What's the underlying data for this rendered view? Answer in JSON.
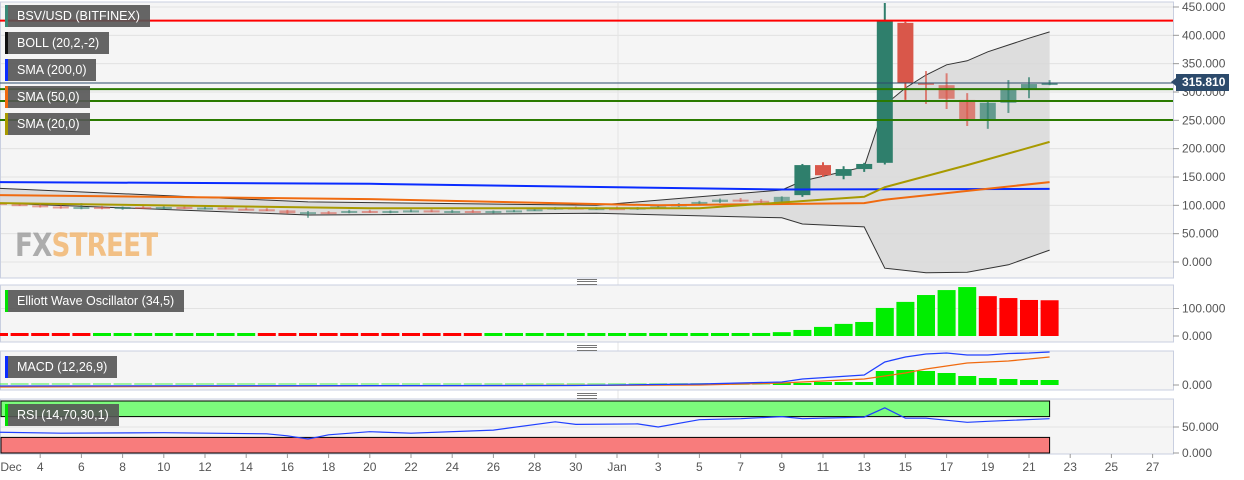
{
  "legends": {
    "pair": {
      "label": "BSV/USD (BITFINEX)",
      "color": "#3a8a78"
    },
    "boll": {
      "label": "BOLL (20,2,-2)",
      "color": "#111111"
    },
    "sma200": {
      "label": "SMA (200,0)",
      "color": "#0a2cff"
    },
    "sma50": {
      "label": "SMA (50,0)",
      "color": "#f06a0f"
    },
    "sma20": {
      "label": "SMA (20,0)",
      "color": "#a89a00"
    },
    "ewo": {
      "label": "Elliott Wave Oscillator (34,5)",
      "color": "#00e000"
    },
    "macd": {
      "label": "MACD (12,26,9)",
      "color": "#0a2cff"
    },
    "rsi": {
      "label": "RSI (14,70,30,1)",
      "color": "#00e000"
    }
  },
  "watermark": {
    "fx": "FX",
    "street": "STREET"
  },
  "current_price": "315.810",
  "colors": {
    "up": "#2f7f6c",
    "down": "#d9574a",
    "ewo_up": "#00ee00",
    "ewo_down": "#ff0000",
    "band": "#d8d8d8",
    "level_red": "#ff0000",
    "level_green": "#2a7a00",
    "price_line": "#2c4a6b",
    "rsi_over": "#7cfb7c",
    "rsi_under": "#f87c7c"
  },
  "chart_data": [
    {
      "type": "candlestick",
      "title": "BSV/USD (BITFINEX)",
      "ylim": [
        -30,
        460
      ],
      "y_ticks": [
        "450.000",
        "400.000",
        "350.000",
        "300.000",
        "250.000",
        "200.000",
        "150.000",
        "100.000",
        "50.000",
        "0.000"
      ],
      "x_tick_labels": [
        "Dec",
        "4",
        "6",
        "8",
        "10",
        "12",
        "14",
        "16",
        "18",
        "20",
        "22",
        "24",
        "26",
        "28",
        "30",
        "Jan",
        "3",
        "5",
        "7",
        "9",
        "11",
        "13",
        "15",
        "17",
        "19",
        "21",
        "23",
        "25",
        "27"
      ],
      "start_date": "2018-12-02",
      "ohlc": [
        [
          104,
          106,
          100,
          102
        ],
        [
          102,
          104,
          99,
          100
        ],
        [
          100,
          102,
          96,
          98
        ],
        [
          98,
          100,
          94,
          96
        ],
        [
          96,
          104,
          93,
          97
        ],
        [
          97,
          99,
          93,
          95
        ],
        [
          95,
          98,
          92,
          97
        ],
        [
          97,
          99,
          94,
          96
        ],
        [
          96,
          99,
          93,
          97
        ],
        [
          97,
          98,
          94,
          95
        ],
        [
          95,
          98,
          93,
          96
        ],
        [
          96,
          98,
          93,
          94
        ],
        [
          94,
          96,
          92,
          93
        ],
        [
          93,
          95,
          90,
          91
        ],
        [
          91,
          92,
          85,
          86
        ],
        [
          86,
          90,
          78,
          88
        ],
        [
          88,
          90,
          85,
          87
        ],
        [
          87,
          92,
          86,
          90
        ],
        [
          90,
          92,
          87,
          88
        ],
        [
          88,
          91,
          86,
          90
        ],
        [
          90,
          93,
          88,
          91
        ],
        [
          91,
          93,
          88,
          89
        ],
        [
          89,
          92,
          87,
          90
        ],
        [
          90,
          92,
          87,
          88
        ],
        [
          88,
          91,
          86,
          90
        ],
        [
          90,
          92,
          88,
          91
        ],
        [
          91,
          94,
          90,
          93
        ],
        [
          93,
          97,
          92,
          96
        ],
        [
          96,
          98,
          93,
          94
        ],
        [
          94,
          97,
          92,
          95
        ],
        [
          95,
          98,
          93,
          94
        ],
        [
          94,
          97,
          92,
          96
        ],
        [
          96,
          99,
          94,
          98
        ],
        [
          98,
          104,
          97,
          102
        ],
        [
          102,
          108,
          101,
          106
        ],
        [
          106,
          112,
          104,
          110
        ],
        [
          110,
          113,
          106,
          108
        ],
        [
          108,
          111,
          103,
          106
        ],
        [
          106,
          116,
          104,
          115
        ],
        [
          118,
          173,
          115,
          171
        ],
        [
          171,
          176,
          150,
          153
        ],
        [
          152,
          169,
          146,
          164
        ],
        [
          164,
          175,
          159,
          173
        ],
        [
          175,
          457,
          172,
          425
        ],
        [
          422,
          424,
          286,
          316
        ],
        [
          316,
          337,
          279,
          314
        ],
        [
          312,
          333,
          270,
          288
        ],
        [
          286,
          298,
          240,
          252
        ],
        [
          252,
          284,
          235,
          281
        ],
        [
          281,
          321,
          263,
          304
        ],
        [
          304,
          326,
          289,
          314
        ],
        [
          314,
          321,
          312,
          315.81
        ]
      ],
      "levels": [
        {
          "value": 426,
          "color": "#ff0000"
        },
        {
          "value": 305,
          "color": "#2a7a00"
        },
        {
          "value": 284,
          "color": "#2a7a00"
        },
        {
          "value": 250.5,
          "color": "#2a7a00"
        },
        {
          "value": 315.81,
          "color": "#2c4a6b"
        }
      ],
      "boll_upper": [
        [
          "2018-12-02",
          130
        ],
        [
          "2018-12-17",
          106
        ],
        [
          "2018-12-31",
          100
        ],
        [
          "2019-01-09",
          127
        ],
        [
          "2019-01-10",
          143
        ],
        [
          "2019-01-13",
          168
        ],
        [
          "2019-01-14",
          277
        ],
        [
          "2019-01-15",
          307
        ],
        [
          "2019-01-16",
          330
        ],
        [
          "2019-01-17",
          348
        ],
        [
          "2019-01-18",
          355
        ],
        [
          "2019-01-19",
          371
        ],
        [
          "2019-01-20",
          383
        ],
        [
          "2019-01-21",
          395
        ],
        [
          "2019-01-22",
          406
        ]
      ],
      "boll_lower": [
        [
          "2018-12-02",
          104
        ],
        [
          "2018-12-17",
          83
        ],
        [
          "2018-12-31",
          86
        ],
        [
          "2019-01-09",
          78
        ],
        [
          "2019-01-10",
          67
        ],
        [
          "2019-01-13",
          62
        ],
        [
          "2019-01-14",
          -11
        ],
        [
          "2019-01-16",
          -19
        ],
        [
          "2019-01-18",
          -18
        ],
        [
          "2019-01-20",
          -5
        ],
        [
          "2019-01-22",
          21
        ]
      ],
      "sma200": [
        [
          "2018-12-02",
          141
        ],
        [
          "2018-12-20",
          138
        ],
        [
          "2019-01-09",
          128
        ],
        [
          "2019-01-22",
          129
        ]
      ],
      "sma50": [
        [
          "2018-12-02",
          118
        ],
        [
          "2018-12-20",
          111
        ],
        [
          "2019-01-03",
          100
        ],
        [
          "2019-01-13",
          104
        ],
        [
          "2019-01-14",
          110
        ],
        [
          "2019-01-22",
          141
        ]
      ],
      "sma20": [
        [
          "2018-12-02",
          104
        ],
        [
          "2018-12-20",
          95
        ],
        [
          "2019-01-05",
          95
        ],
        [
          "2019-01-13",
          115
        ],
        [
          "2019-01-14",
          132
        ],
        [
          "2019-01-18",
          171
        ],
        [
          "2019-01-22",
          212
        ]
      ]
    },
    {
      "type": "bar",
      "title": "Elliott Wave Oscillator (34,5)",
      "y_ticks": [
        "100.000",
        "0.000"
      ],
      "values": [
        -3,
        -3,
        -3,
        -3,
        -3,
        2,
        2,
        2,
        2,
        2,
        2,
        2,
        2,
        -2,
        -2,
        -2,
        -2,
        -2,
        -2,
        -2,
        -2,
        -2,
        -2,
        -2,
        1,
        1,
        1,
        1,
        1,
        1,
        1,
        1,
        2,
        3,
        5,
        7,
        9,
        11,
        14,
        22,
        33,
        44,
        51,
        102,
        124,
        149,
        167,
        178,
        145,
        138,
        131,
        130
      ]
    },
    {
      "type": "line+bar",
      "title": "MACD (12,26,9)",
      "y_ticks": [
        "0.000"
      ],
      "histogram": [
        0,
        0,
        0,
        0,
        0,
        0,
        0,
        0,
        0,
        0,
        0,
        0,
        0,
        0,
        0,
        0,
        0,
        0,
        0,
        0,
        0,
        0,
        0,
        0,
        0,
        0,
        1,
        1,
        1,
        1,
        1,
        1,
        1,
        1,
        1,
        1,
        1,
        1,
        2,
        4,
        6,
        6,
        6,
        28,
        30,
        28,
        24,
        18,
        14,
        12,
        10,
        10
      ],
      "macd": [
        [
          "2018-12-02",
          -2
        ],
        [
          "2018-12-30",
          -1
        ],
        [
          "2019-01-05",
          2
        ],
        [
          "2019-01-09",
          6
        ],
        [
          "2019-01-10",
          12
        ],
        [
          "2019-01-13",
          20
        ],
        [
          "2019-01-14",
          46
        ],
        [
          "2019-01-15",
          56
        ],
        [
          "2019-01-16",
          62
        ],
        [
          "2019-01-17",
          64
        ],
        [
          "2019-01-18",
          60
        ],
        [
          "2019-01-19",
          60
        ],
        [
          "2019-01-20",
          63
        ],
        [
          "2019-01-21",
          64
        ],
        [
          "2019-01-22",
          66
        ]
      ],
      "signal": [
        [
          "2018-12-02",
          -4
        ],
        [
          "2019-01-05",
          0
        ],
        [
          "2019-01-09",
          4
        ],
        [
          "2019-01-13",
          12
        ],
        [
          "2019-01-14",
          18
        ],
        [
          "2019-01-15",
          24
        ],
        [
          "2019-01-16",
          32
        ],
        [
          "2019-01-17",
          38
        ],
        [
          "2019-01-18",
          44
        ],
        [
          "2019-01-19",
          46
        ],
        [
          "2019-01-20",
          48
        ],
        [
          "2019-01-21",
          52
        ],
        [
          "2019-01-22",
          56
        ]
      ]
    },
    {
      "type": "line",
      "title": "RSI (14,70,30,1)",
      "y_ticks": [
        "50.000",
        "0.000"
      ],
      "ylim": [
        0,
        100
      ],
      "overbought": 70,
      "oversold": 30,
      "values": [
        [
          "2018-12-02",
          40
        ],
        [
          "2018-12-05",
          38
        ],
        [
          "2018-12-10",
          39
        ],
        [
          "2018-12-15",
          37
        ],
        [
          "2018-12-16",
          33
        ],
        [
          "2018-12-17",
          27
        ],
        [
          "2018-12-18",
          35
        ],
        [
          "2018-12-20",
          41
        ],
        [
          "2018-12-22",
          38
        ],
        [
          "2018-12-26",
          44
        ],
        [
          "2018-12-29",
          60
        ],
        [
          "2018-12-30",
          55
        ],
        [
          "2019-01-02",
          56
        ],
        [
          "2019-01-03",
          50
        ],
        [
          "2019-01-05",
          64
        ],
        [
          "2019-01-07",
          66
        ],
        [
          "2019-01-09",
          70
        ],
        [
          "2019-01-10",
          66
        ],
        [
          "2019-01-13",
          69
        ],
        [
          "2019-01-14",
          87
        ],
        [
          "2019-01-15",
          67
        ],
        [
          "2019-01-16",
          67
        ],
        [
          "2019-01-18",
          59
        ],
        [
          "2019-01-19",
          61
        ],
        [
          "2019-01-22",
          66
        ]
      ]
    }
  ]
}
